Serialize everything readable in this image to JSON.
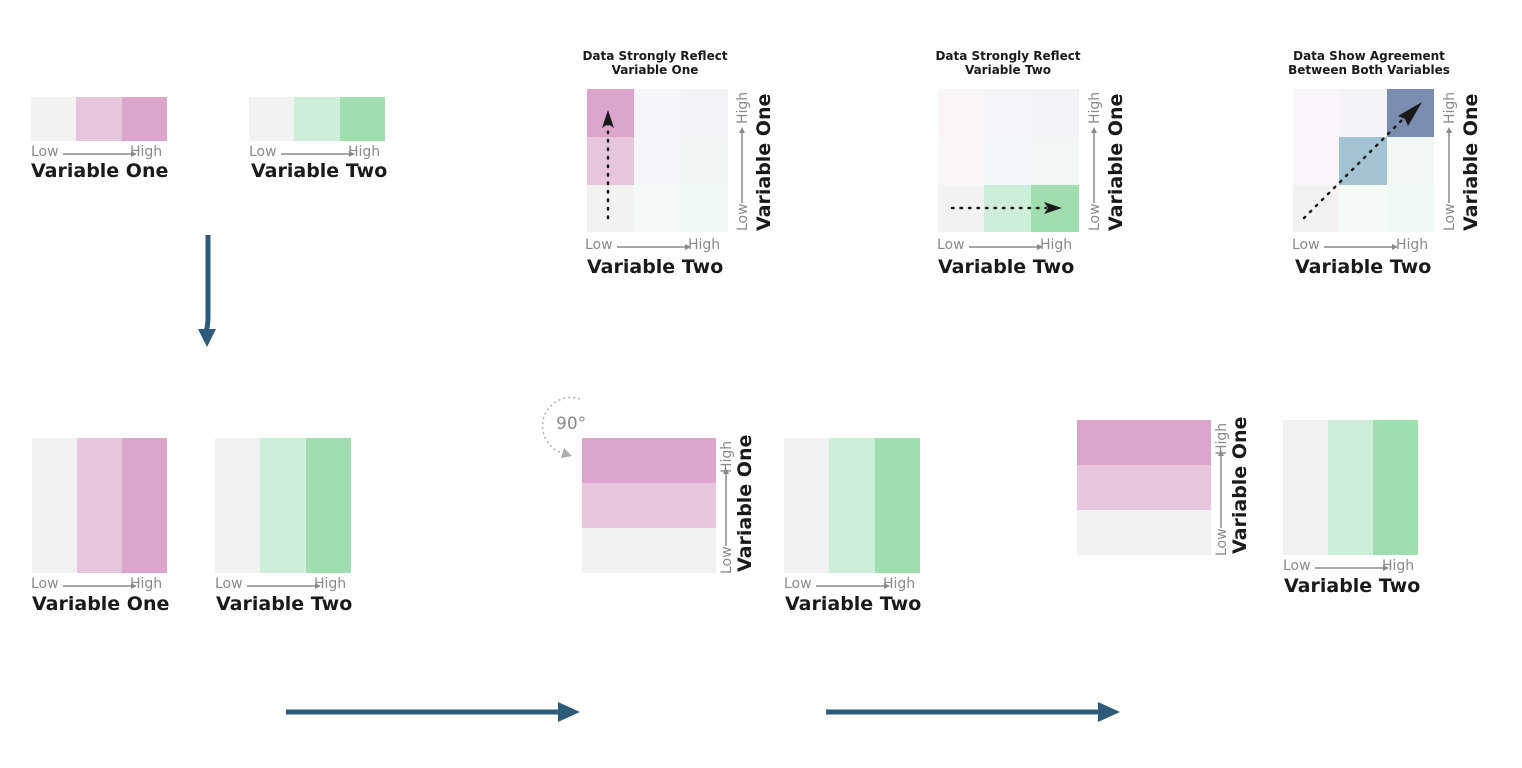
{
  "labels": {
    "low": "Low",
    "high": "High",
    "var_one": "Variable One",
    "var_two": "Variable Two",
    "rotation": "90°"
  },
  "titles": {
    "panel_one_line1": "Data Strongly Reflect",
    "panel_one_line2": "Variable One",
    "panel_two_line1": "Data Strongly Reflect",
    "panel_two_line2": "Variable Two",
    "panel_three_line1": "Data Show Agreement",
    "panel_three_line2": "Between Both Variables"
  },
  "colors": {
    "neutral": "#f2f2f2",
    "pink_mid": "#e6c5dd",
    "pink_high": "#dba5cc",
    "green_mid": "#cdeed8",
    "green_high": "#a0deb0",
    "blue_mid": "#a4c3d2",
    "blue_high": "#7a8caf",
    "arrow": "#2e5b7a"
  }
}
